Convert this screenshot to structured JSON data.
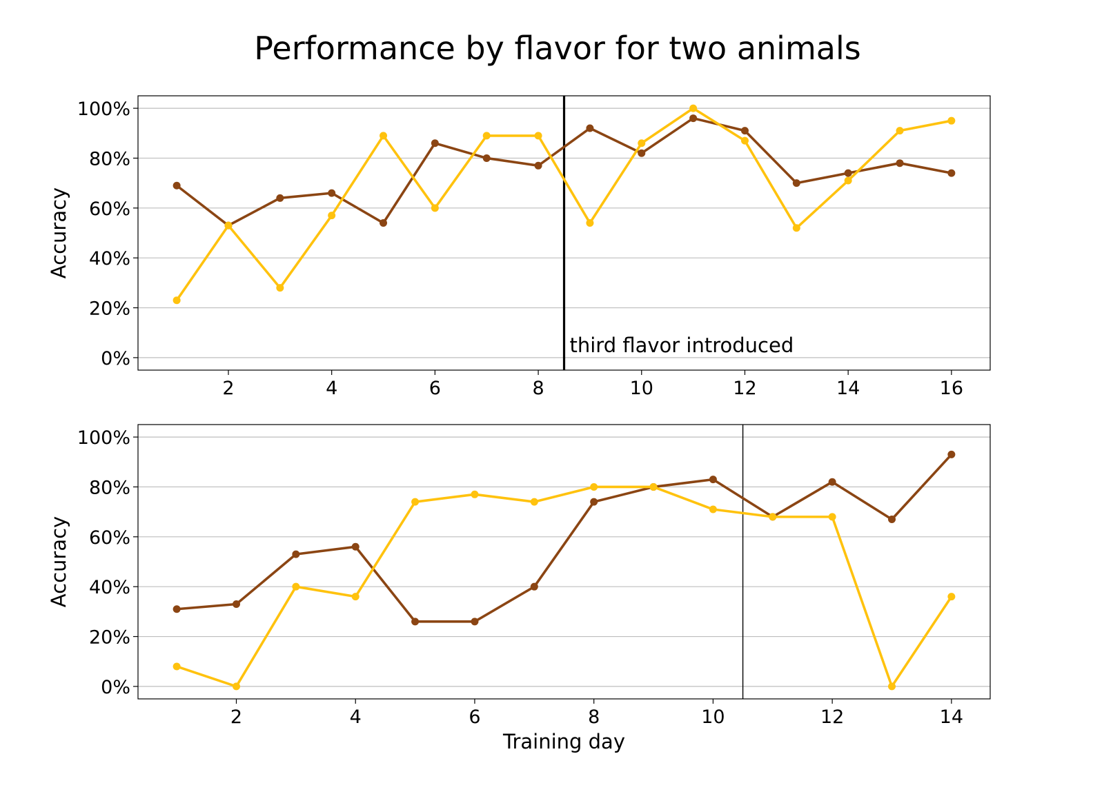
{
  "figure": {
    "title": "Performance by flavor for two animals"
  },
  "chart_data": [
    {
      "type": "line",
      "title": "",
      "xlabel": "",
      "ylabel": "Accuracy",
      "xlim": [
        0.25,
        16.75
      ],
      "ylim": [
        -5,
        105
      ],
      "xticks": [
        2,
        4,
        6,
        8,
        10,
        12,
        14,
        16
      ],
      "yticks": [
        0,
        20,
        40,
        60,
        80,
        100
      ],
      "ytick_labels": [
        "0%",
        "20%",
        "40%",
        "60%",
        "80%",
        "100%"
      ],
      "grid": "horizontal",
      "x": [
        1,
        2,
        3,
        4,
        5,
        6,
        7,
        8,
        9,
        10,
        11,
        12,
        13,
        14,
        15,
        16
      ],
      "series": [
        {
          "color": "#8B4513",
          "values": [
            69,
            53,
            64,
            66,
            54,
            86,
            80,
            77,
            92,
            82,
            96,
            91,
            70,
            74,
            78,
            74
          ]
        },
        {
          "color": "#FFC20E",
          "values": [
            23,
            53,
            28,
            57,
            89,
            60,
            89,
            89,
            54,
            86,
            100,
            87,
            52,
            71,
            91,
            95
          ]
        }
      ],
      "vline": {
        "x": 8.5,
        "label": "third flavor introduced",
        "thick": true
      }
    },
    {
      "type": "line",
      "title": "",
      "xlabel": "Training day",
      "ylabel": "Accuracy",
      "xlim": [
        0.35,
        14.65
      ],
      "ylim": [
        -5,
        105
      ],
      "xticks": [
        2,
        4,
        6,
        8,
        10,
        12,
        14
      ],
      "yticks": [
        0,
        20,
        40,
        60,
        80,
        100
      ],
      "ytick_labels": [
        "0%",
        "20%",
        "40%",
        "60%",
        "80%",
        "100%"
      ],
      "grid": "horizontal",
      "x": [
        1,
        2,
        3,
        4,
        5,
        6,
        7,
        8,
        9,
        10,
        11,
        12,
        13,
        14
      ],
      "series": [
        {
          "color": "#8B4513",
          "values": [
            31,
            33,
            53,
            56,
            26,
            26,
            40,
            74,
            80,
            83,
            68,
            82,
            67,
            93
          ]
        },
        {
          "color": "#FFC20E",
          "values": [
            8,
            0,
            40,
            36,
            74,
            77,
            74,
            80,
            80,
            71,
            68,
            68,
            0,
            36
          ]
        }
      ],
      "vline": {
        "x": 10.5,
        "label": "",
        "thick": false
      }
    }
  ]
}
